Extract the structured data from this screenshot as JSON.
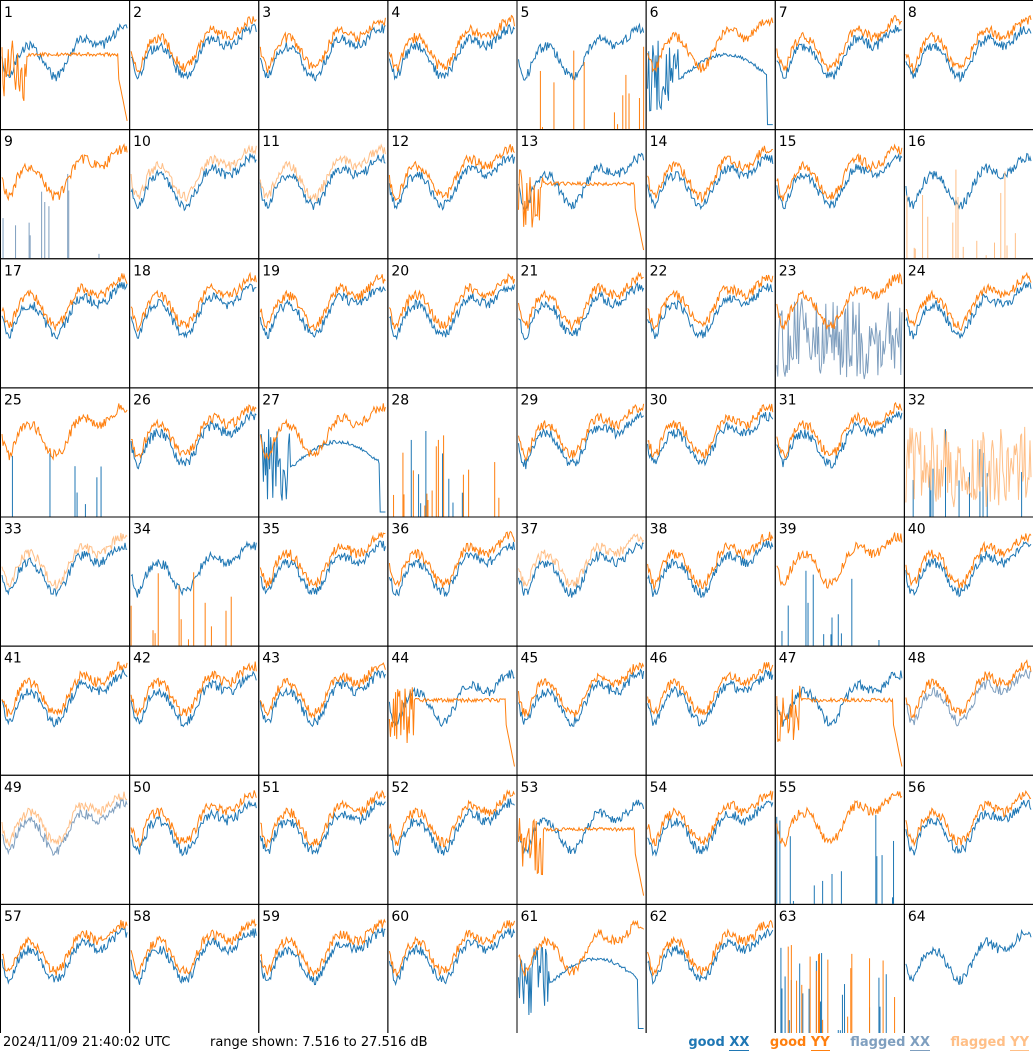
{
  "chart_data": {
    "type": "line",
    "layout": "8x8 grid of small multiples, one panel per antenna",
    "panels": [
      1,
      2,
      3,
      4,
      5,
      6,
      7,
      8,
      9,
      10,
      11,
      12,
      13,
      14,
      15,
      16,
      17,
      18,
      19,
      20,
      21,
      22,
      23,
      24,
      25,
      26,
      27,
      28,
      29,
      30,
      31,
      32,
      33,
      34,
      35,
      36,
      37,
      38,
      39,
      40,
      41,
      42,
      43,
      44,
      45,
      46,
      47,
      48,
      49,
      50,
      51,
      52,
      53,
      54,
      55,
      56,
      57,
      58,
      59,
      60,
      61,
      62,
      63,
      64
    ],
    "series": [
      {
        "name": "good XX",
        "color": "#1f77b4"
      },
      {
        "name": "good YY",
        "color": "#ff7f0e"
      },
      {
        "name": "flagged XX",
        "color": "#7f9fbf"
      },
      {
        "name": "flagged YY",
        "color": "#ffbf87"
      }
    ],
    "panel_states": {
      "1": [
        "good",
        "irregular"
      ],
      "2": [
        "good",
        "good"
      ],
      "3": [
        "good",
        "good"
      ],
      "4": [
        "good",
        "good"
      ],
      "5": [
        "good",
        "spikes"
      ],
      "6": [
        "hump",
        "good"
      ],
      "7": [
        "good",
        "good"
      ],
      "8": [
        "good",
        "good"
      ],
      "9": [
        "flagged-spikes",
        "good"
      ],
      "10": [
        "good",
        "flagged"
      ],
      "11": [
        "good",
        "flagged"
      ],
      "12": [
        "good",
        "good"
      ],
      "13": [
        "good",
        "irregular"
      ],
      "14": [
        "good",
        "good"
      ],
      "15": [
        "good",
        "good"
      ],
      "16": [
        "good",
        "flagged-spikes"
      ],
      "17": [
        "good",
        "good"
      ],
      "18": [
        "good",
        "good"
      ],
      "19": [
        "good",
        "good"
      ],
      "20": [
        "good",
        "good"
      ],
      "21": [
        "good",
        "good"
      ],
      "22": [
        "good",
        "good"
      ],
      "23": [
        "flagged-noise",
        "good"
      ],
      "24": [
        "good",
        "good"
      ],
      "25": [
        "spikes",
        "good"
      ],
      "26": [
        "good",
        "good"
      ],
      "27": [
        "hump",
        "good"
      ],
      "28": [
        "spikes",
        "spikes"
      ],
      "29": [
        "good",
        "good"
      ],
      "30": [
        "good",
        "good"
      ],
      "31": [
        "good",
        "good"
      ],
      "32": [
        "spikes",
        "flagged-noise"
      ],
      "33": [
        "good",
        "flagged"
      ],
      "34": [
        "good",
        "spikes"
      ],
      "35": [
        "good",
        "good"
      ],
      "36": [
        "good",
        "good"
      ],
      "37": [
        "good",
        "flagged"
      ],
      "38": [
        "good",
        "good"
      ],
      "39": [
        "spikes",
        "good"
      ],
      "40": [
        "good",
        "good"
      ],
      "41": [
        "good",
        "good"
      ],
      "42": [
        "good",
        "good"
      ],
      "43": [
        "good",
        "good"
      ],
      "44": [
        "good",
        "irregular"
      ],
      "45": [
        "good",
        "good"
      ],
      "46": [
        "good",
        "good"
      ],
      "47": [
        "good",
        "irregular"
      ],
      "48": [
        "flagged",
        "good"
      ],
      "49": [
        "flagged",
        "flagged"
      ],
      "50": [
        "good",
        "good"
      ],
      "51": [
        "good",
        "good"
      ],
      "52": [
        "good",
        "good"
      ],
      "53": [
        "good",
        "irregular"
      ],
      "54": [
        "good",
        "good"
      ],
      "55": [
        "spikes",
        "good"
      ],
      "56": [
        "good",
        "good"
      ],
      "57": [
        "good",
        "good"
      ],
      "58": [
        "good",
        "good"
      ],
      "59": [
        "good",
        "good"
      ],
      "60": [
        "good",
        "good"
      ],
      "61": [
        "hump",
        "good"
      ],
      "62": [
        "good",
        "good"
      ],
      "63": [
        "spikes",
        "spikes"
      ],
      "64": [
        "good",
        "none"
      ]
    },
    "ylim": [
      7.516,
      27.516
    ],
    "yunit": "dB"
  },
  "footer": {
    "timestamp": "2024/11/09 21:40:02 UTC",
    "range": "range shown: 7.516 to 27.516 dB",
    "legend": [
      {
        "pre": "good ",
        "u": "XX",
        "color": "#1f77b4"
      },
      {
        "pre": "good ",
        "u": "YY",
        "color": "#ff7f0e"
      },
      {
        "pre": "flagged ",
        "u": "XX",
        "color": "#7f9fbf"
      },
      {
        "pre": "flagged ",
        "u": "YY",
        "color": "#ffbf87"
      }
    ]
  }
}
